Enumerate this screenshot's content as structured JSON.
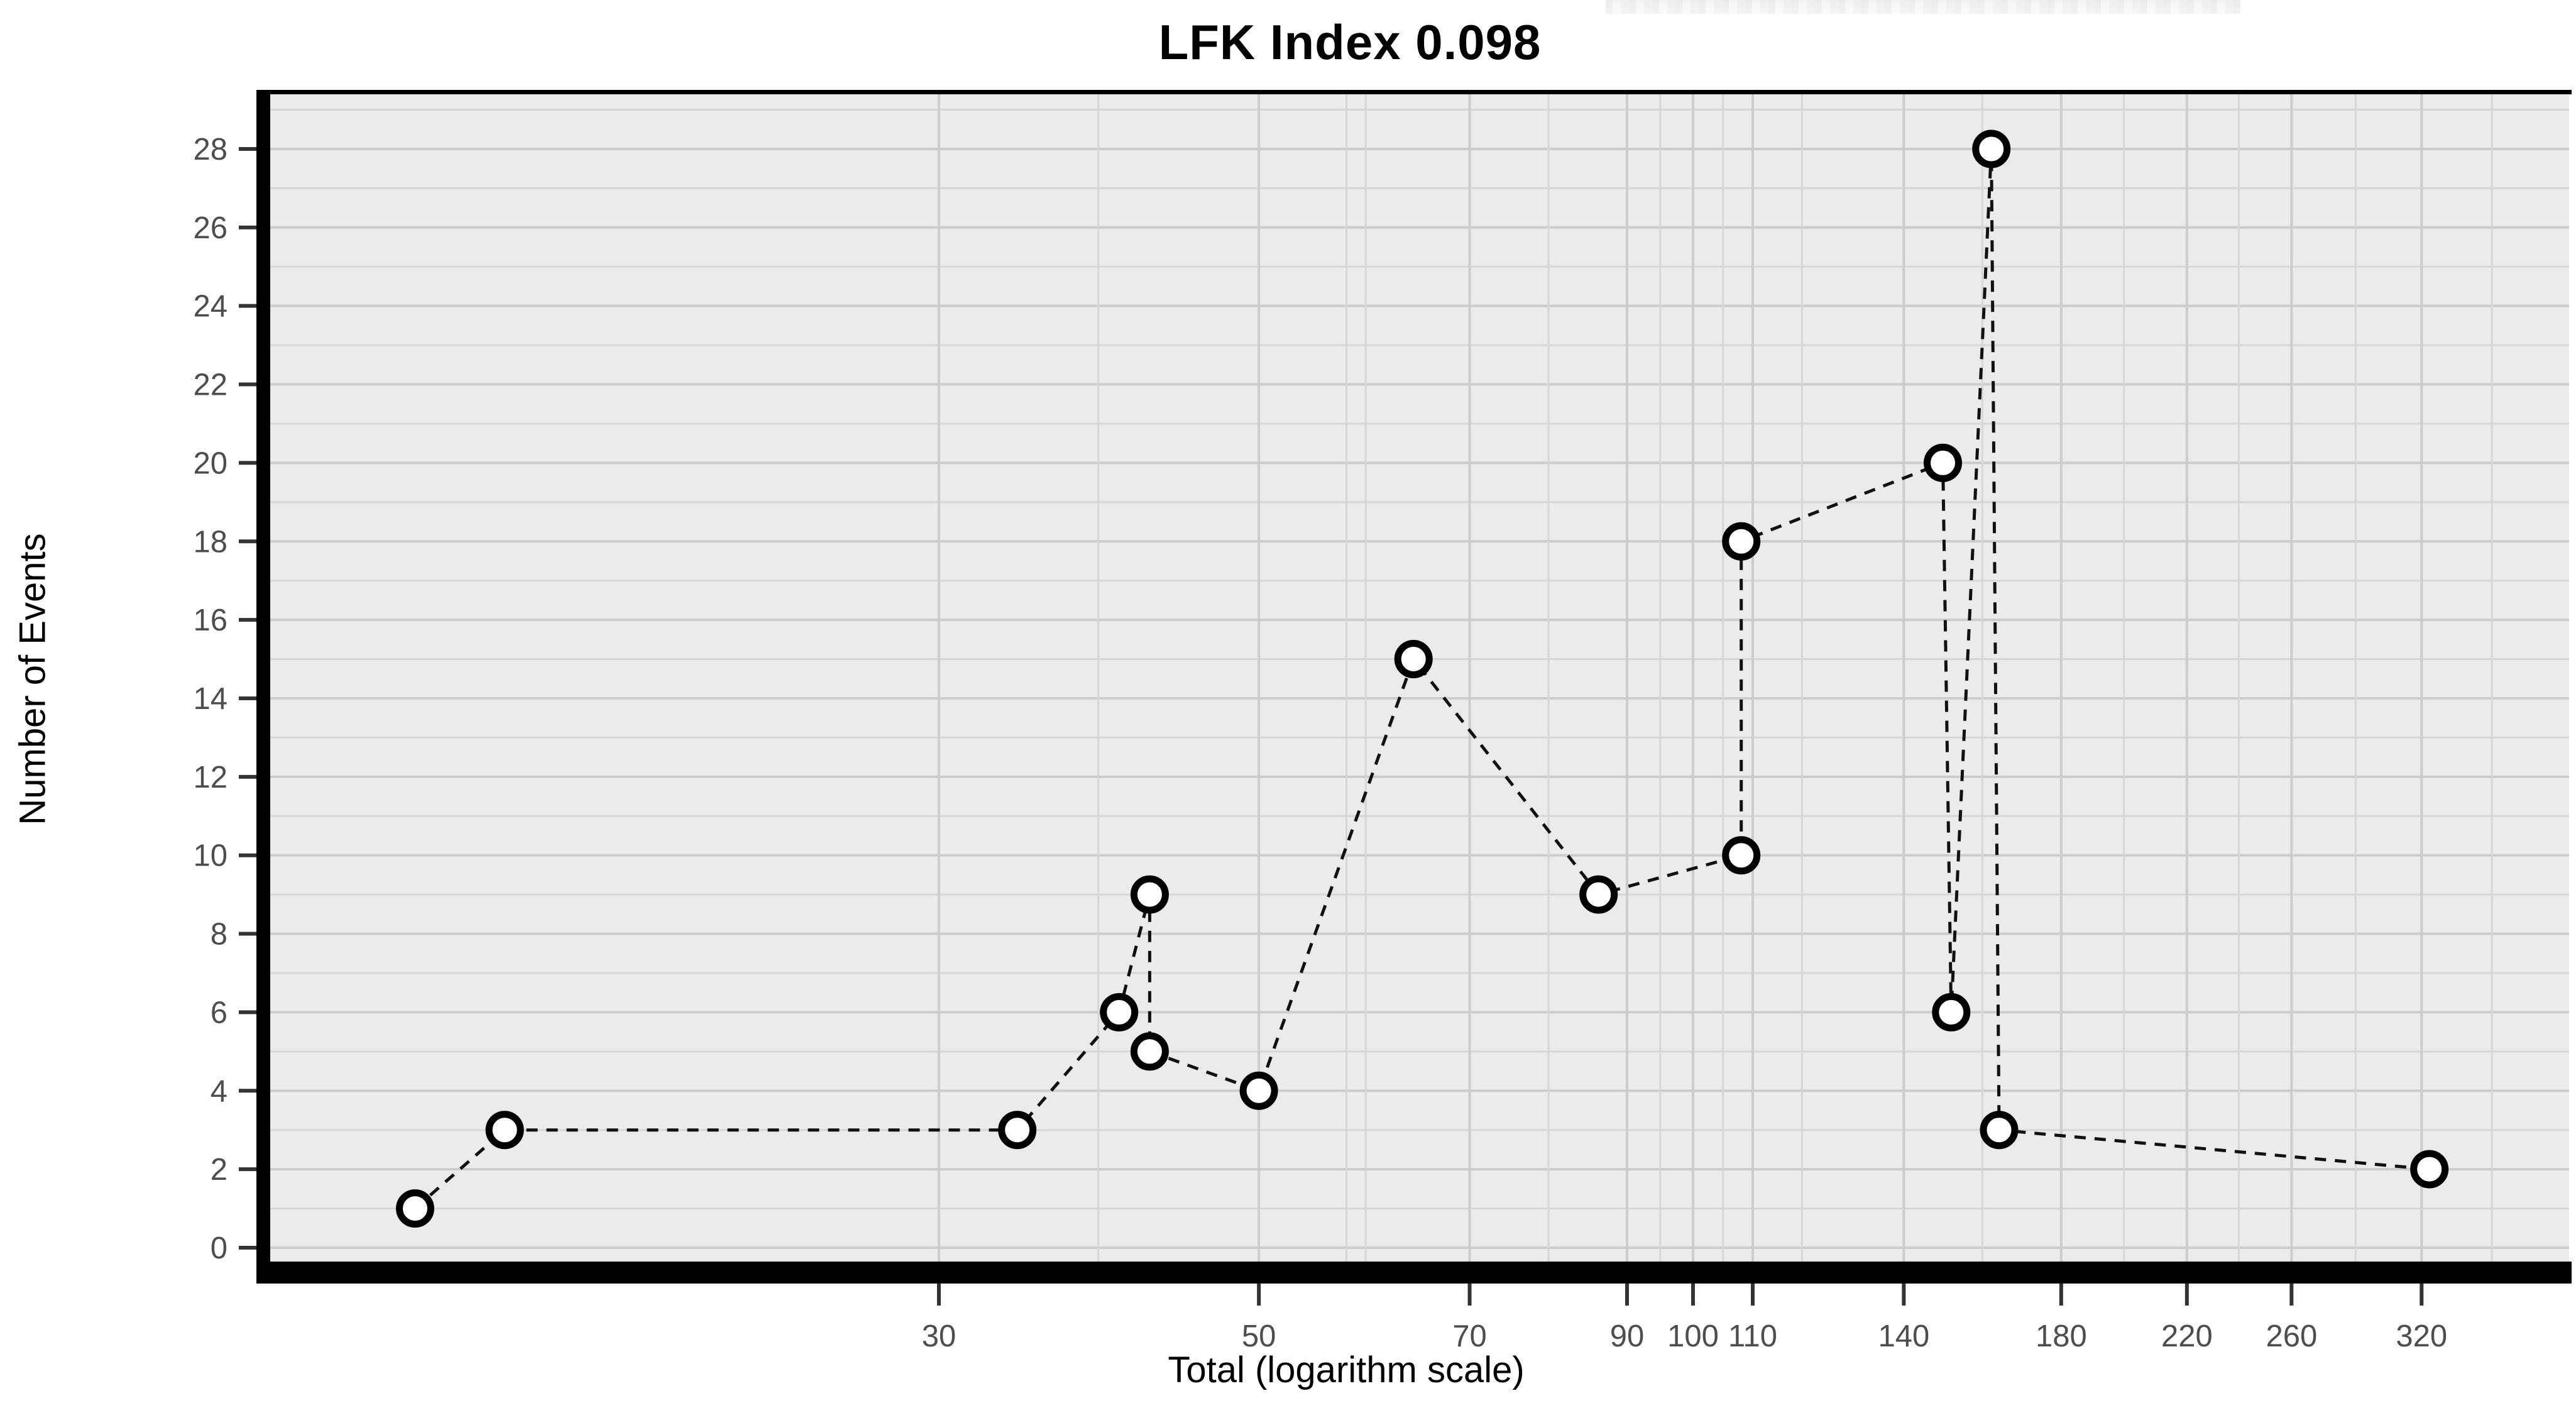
{
  "page": {
    "artifact_note": "faint cropped text remnants along top edge"
  },
  "chart_data": {
    "type": "line",
    "title": "LFK Index 0.098",
    "xlabel": "Total (logarithm scale)",
    "ylabel": "Number of Events",
    "x_scale": "log10",
    "line_style": "dashed",
    "marker": "open-circle",
    "legend": "none",
    "grid": "on",
    "xlim": [
      10.3,
      403
    ],
    "ylim": [
      -0.35,
      29.4
    ],
    "x_major_breaks": [
      30,
      50,
      70,
      90,
      100,
      110,
      140,
      180,
      220,
      260,
      320
    ],
    "x_minor_breaks": [
      38.7,
      57.5,
      59.3,
      79.4,
      94.9,
      104.9,
      119,
      158.7,
      199,
      239,
      288,
      358
    ],
    "y_major_breaks": [
      0,
      2,
      4,
      6,
      8,
      10,
      12,
      14,
      16,
      18,
      20,
      22,
      24,
      26,
      28
    ],
    "y_minor_breaks": [
      1,
      3,
      5,
      7,
      9,
      11,
      13,
      15,
      17,
      19,
      21,
      23,
      25,
      27,
      29
    ],
    "series": [
      {
        "name": "events",
        "points": [
          [
            13,
            1
          ],
          [
            15,
            3
          ],
          [
            34,
            3
          ],
          [
            40,
            6
          ],
          [
            42,
            9
          ],
          [
            42,
            5
          ],
          [
            50,
            4
          ],
          [
            64,
            15
          ],
          [
            86,
            9
          ],
          [
            108,
            10
          ],
          [
            108,
            18
          ],
          [
            149,
            20
          ],
          [
            151,
            6
          ],
          [
            161,
            28
          ],
          [
            163,
            3
          ],
          [
            324,
            2
          ]
        ]
      }
    ],
    "colors": {
      "panel_background": "#ebebeb",
      "grid_major": "#cccccc",
      "grid_minor": "#d6d6d6",
      "axis_line": "#000000",
      "tick_mark": "#333333",
      "tick_label": "#4d4d4d",
      "series_line": "#111111",
      "marker_fill": "#ffffff",
      "marker_stroke": "#000000",
      "title": "#000000"
    }
  }
}
